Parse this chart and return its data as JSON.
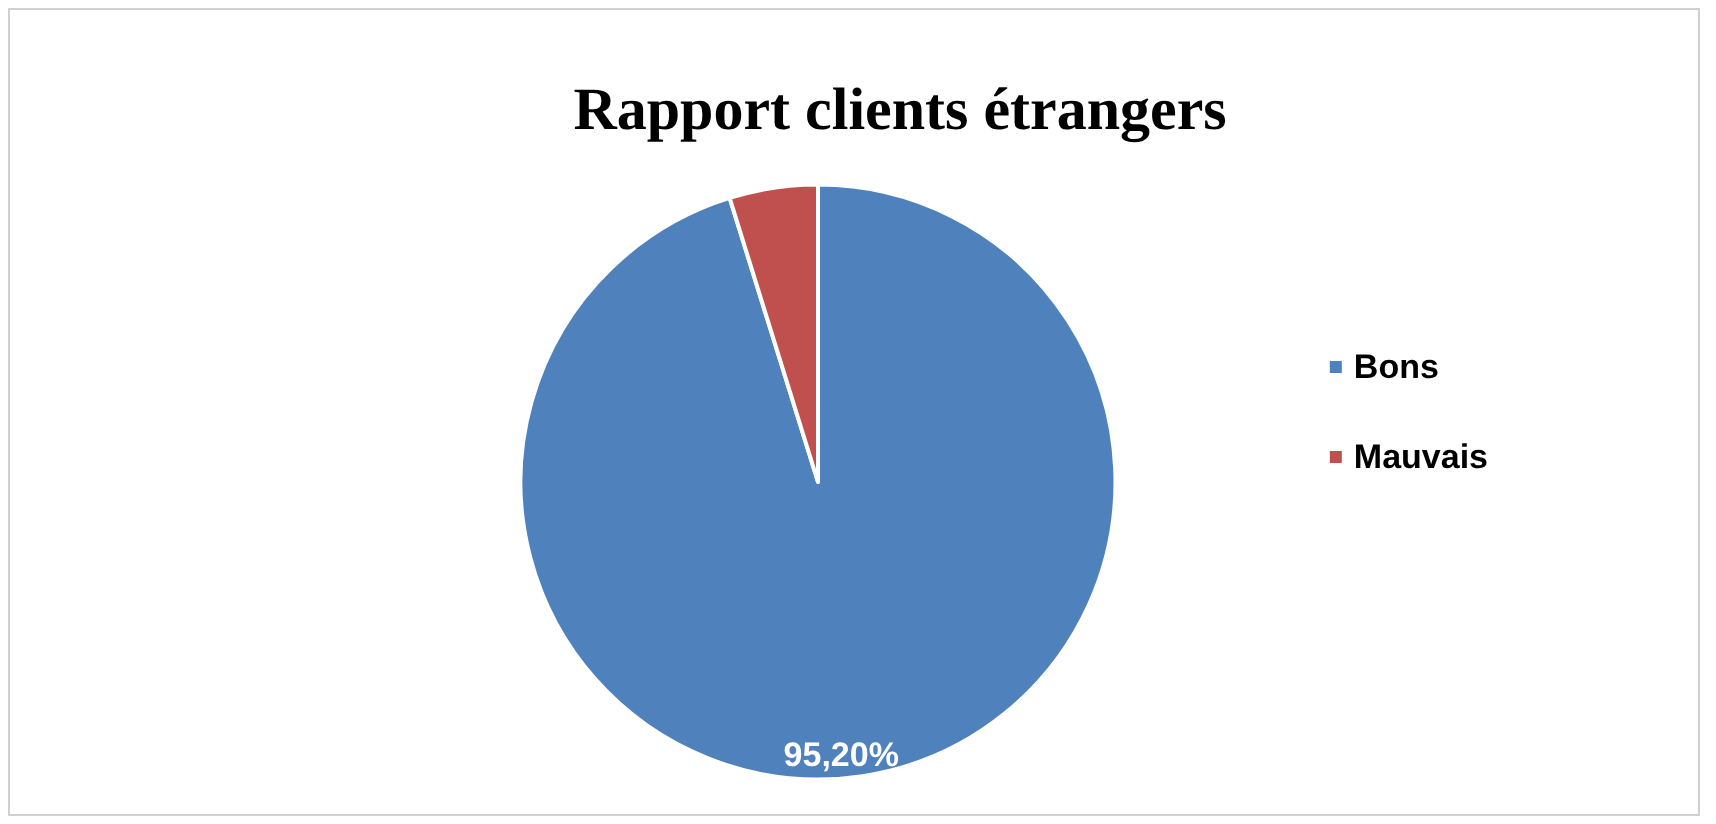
{
  "chart_data": {
    "type": "pie",
    "title": "Rapport clients étrangers",
    "categories": [
      "Bons",
      "Mauvais"
    ],
    "values": [
      95.2,
      4.8
    ],
    "colors": [
      "#4f81bd",
      "#c0504d"
    ],
    "value_labels": [
      "95,20%",
      null
    ],
    "legend": "right"
  }
}
